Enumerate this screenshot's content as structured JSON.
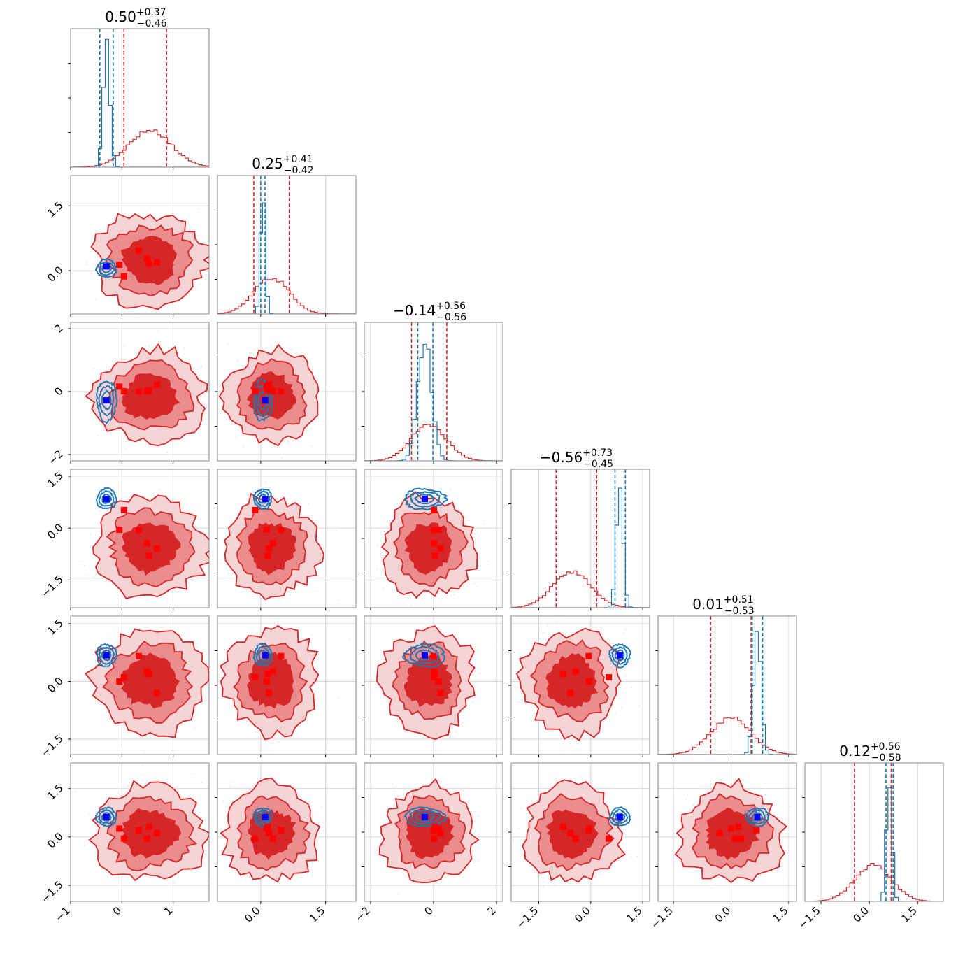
{
  "chart_data": {
    "type": "corner",
    "n_params": 6,
    "colors": {
      "red": "#d62728",
      "red_mid": "#eb8c8e",
      "red_light": "#f6d3d4",
      "blue": "#1f77b4",
      "marker": "#0000ff",
      "square": "#ff0000",
      "grid": "#c8c8c8"
    },
    "ranges": [
      [
        -1.0,
        1.7
      ],
      [
        -1.0,
        2.2
      ],
      [
        -2.2,
        2.2
      ],
      [
        -2.3,
        1.7
      ],
      [
        -1.9,
        1.7
      ],
      [
        -2.0,
        2.3
      ]
    ],
    "x_ticks": [
      {
        "values": [
          -1,
          0,
          1
        ],
        "labels": [
          "−1",
          "0",
          "1"
        ]
      },
      {
        "values": [
          0.0,
          1.5
        ],
        "labels": [
          "0.0",
          "1.5"
        ]
      },
      {
        "values": [
          -2,
          0,
          2
        ],
        "labels": [
          "−2",
          "0",
          "2"
        ]
      },
      {
        "values": [
          -1.5,
          0.0,
          1.5
        ],
        "labels": [
          "−1.5",
          "0.0",
          "1.5"
        ]
      },
      {
        "values": [
          -1.5,
          0.0,
          1.5
        ],
        "labels": [
          "−1.5",
          "0.0",
          "1.5"
        ]
      },
      {
        "values": [
          -1.5,
          0.0,
          1.5
        ],
        "labels": [
          "−1.5",
          "0.0",
          "1.5"
        ]
      }
    ],
    "y_ticks": [
      null,
      {
        "values": [
          0.0,
          1.5
        ],
        "labels": [
          "0.0",
          "1.5"
        ]
      },
      {
        "values": [
          -2,
          0,
          2
        ],
        "labels": [
          "−2",
          "0",
          "2"
        ]
      },
      {
        "values": [
          -1.5,
          0.0,
          1.5
        ],
        "labels": [
          "−1.5",
          "0.0",
          "1.5"
        ]
      },
      {
        "values": [
          -1.5,
          0.0,
          1.5
        ],
        "labels": [
          "−1.5",
          "0.0",
          "1.5"
        ]
      },
      {
        "values": [
          -1.5,
          0.0,
          1.5
        ],
        "labels": [
          "−1.5",
          "0.0",
          "1.5"
        ]
      }
    ],
    "titles": [
      {
        "median": "0.50",
        "plus": "+0.37",
        "minus": "−0.46"
      },
      {
        "median": "0.25",
        "plus": "+0.41",
        "minus": "−0.42"
      },
      {
        "median": "−0.14",
        "plus": "+0.56",
        "minus": "−0.56"
      },
      {
        "median": "−0.56",
        "plus": "+0.73",
        "minus": "−0.45"
      },
      {
        "median": "0.01",
        "plus": "+0.51",
        "minus": "−0.53"
      },
      {
        "median": "0.12",
        "plus": "+0.56",
        "minus": "−0.58"
      }
    ],
    "red_posterior": {
      "centers": [
        0.55,
        0.25,
        -0.15,
        -0.55,
        0.0,
        0.12
      ],
      "sigmas": [
        0.42,
        0.41,
        0.56,
        0.55,
        0.52,
        0.57
      ],
      "quantile_lines": [
        [
          0.04,
          0.87
        ],
        [
          -0.16,
          0.66
        ],
        [
          -0.7,
          0.42
        ],
        [
          -1.0,
          0.17
        ],
        [
          -0.53,
          0.52
        ],
        [
          -0.46,
          0.68
        ]
      ],
      "squares": [
        [
          0.33,
          0.47,
          0.0,
          -0.06,
          0.66,
          0.21
        ],
        [
          0.68,
          0.19,
          0.22,
          -0.59,
          -0.3,
          0.12
        ],
        [
          0.04,
          -0.13,
          0.01,
          0.52,
          0.11,
          -0.05
        ],
        [
          -0.05,
          0.14,
          0.16,
          -0.05,
          -0.0,
          0.26
        ],
        [
          0.49,
          0.28,
          0.01,
          -0.44,
          0.26,
          -0.05
        ],
        [
          0.53,
          0.16,
          0.04,
          -0.8,
          0.19,
          0.31
        ]
      ]
    },
    "blue_posterior": {
      "centers": [
        -0.3,
        0.05,
        -0.28,
        0.84,
        0.68,
        0.62
      ],
      "sigmas": [
        0.06,
        0.05,
        0.2,
        0.09,
        0.09,
        0.08
      ],
      "quantile_lines": [
        [
          -0.43,
          -0.17
        ],
        [
          0.0,
          0.1
        ],
        [
          -0.5,
          -0.02
        ],
        [
          0.7,
          1.0
        ],
        [
          0.55,
          0.82
        ],
        [
          0.52,
          0.74
        ]
      ]
    },
    "truth": [
      -0.3,
      0.1,
      -0.28,
      0.84,
      0.68,
      0.62
    ]
  }
}
